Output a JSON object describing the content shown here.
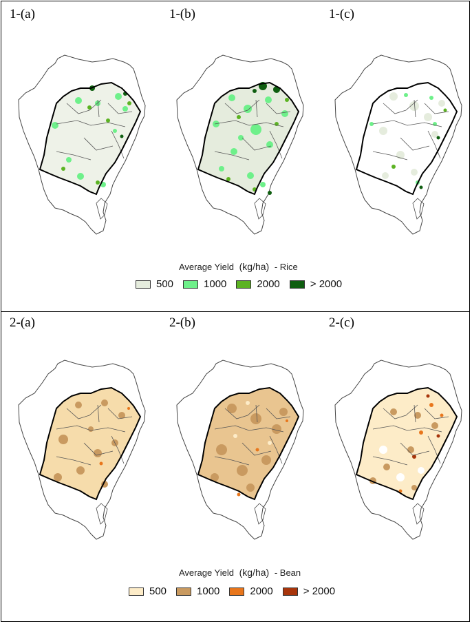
{
  "rice": {
    "labels": [
      "1-(a)",
      "1-(b)",
      "1-(c)"
    ],
    "legend": {
      "title": "Average Yield",
      "unit": "(kg/ha)",
      "suffix": "- Rice",
      "items": [
        {
          "label": "500",
          "color": "#e5ecdd"
        },
        {
          "label": "1000",
          "color": "#6ef08a"
        },
        {
          "label": "2000",
          "color": "#5cb323"
        },
        {
          "label": "> 2000",
          "color": "#0f5e10"
        }
      ]
    }
  },
  "bean": {
    "labels": [
      "2-(a)",
      "2-(b)",
      "2-(c)"
    ],
    "legend": {
      "title": "Average Yield",
      "unit": "(kg/ha)",
      "suffix": "- Bean",
      "items": [
        {
          "label": "500",
          "color": "#fdecc8"
        },
        {
          "label": "1000",
          "color": "#c99a60"
        },
        {
          "label": "2000",
          "color": "#e8761c"
        },
        {
          "label": "> 2000",
          "color": "#a8350b"
        }
      ]
    }
  }
}
